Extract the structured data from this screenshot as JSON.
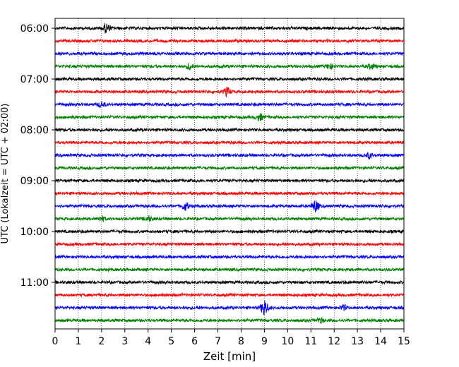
{
  "chart_data": {
    "type": "line",
    "title": "",
    "xlabel": "Zeit  [min]",
    "ylabel": "UTC (Lokalzeit = UTC + 02:00)",
    "xlim": [
      0,
      15
    ],
    "x_ticks": [
      "0",
      "1",
      "2",
      "3",
      "4",
      "5",
      "6",
      "7",
      "8",
      "9",
      "10",
      "11",
      "12",
      "13",
      "14",
      "15"
    ],
    "y_ticks": [
      "06:00",
      "07:00",
      "08:00",
      "09:00",
      "10:00",
      "11:00"
    ],
    "row_interval_minutes": 15,
    "colors": [
      "#000000",
      "#ff0000",
      "#0000ff",
      "#008000"
    ],
    "grid": {
      "x": true,
      "y": false,
      "style": "dotted"
    },
    "series": [
      {
        "start": "06:00",
        "color": "#000000",
        "events": [
          [
            2.2,
            0.6
          ]
        ]
      },
      {
        "start": "06:15",
        "color": "#ff0000",
        "events": []
      },
      {
        "start": "06:30",
        "color": "#0000ff",
        "events": []
      },
      {
        "start": "06:45",
        "color": "#008000",
        "events": [
          [
            5.8,
            0.4
          ],
          [
            11.8,
            0.3
          ],
          [
            13.6,
            0.3
          ]
        ]
      },
      {
        "start": "07:00",
        "color": "#000000",
        "events": []
      },
      {
        "start": "07:15",
        "color": "#ff0000",
        "events": [
          [
            7.4,
            0.5
          ]
        ]
      },
      {
        "start": "07:30",
        "color": "#0000ff",
        "events": [
          [
            2.0,
            0.3
          ]
        ]
      },
      {
        "start": "07:45",
        "color": "#008000",
        "events": [
          [
            8.8,
            0.4
          ]
        ]
      },
      {
        "start": "08:00",
        "color": "#000000",
        "events": []
      },
      {
        "start": "08:15",
        "color": "#ff0000",
        "events": []
      },
      {
        "start": "08:30",
        "color": "#0000ff",
        "events": [
          [
            13.5,
            0.3
          ]
        ]
      },
      {
        "start": "08:45",
        "color": "#008000",
        "events": []
      },
      {
        "start": "09:00",
        "color": "#000000",
        "events": []
      },
      {
        "start": "09:15",
        "color": "#ff0000",
        "events": []
      },
      {
        "start": "09:30",
        "color": "#0000ff",
        "events": [
          [
            5.6,
            0.5
          ],
          [
            11.2,
            0.7
          ]
        ]
      },
      {
        "start": "09:45",
        "color": "#008000",
        "events": [
          [
            2.0,
            0.3
          ],
          [
            4.0,
            0.3
          ]
        ]
      },
      {
        "start": "10:00",
        "color": "#000000",
        "events": []
      },
      {
        "start": "10:15",
        "color": "#ff0000",
        "events": []
      },
      {
        "start": "10:30",
        "color": "#0000ff",
        "events": []
      },
      {
        "start": "10:45",
        "color": "#008000",
        "events": []
      },
      {
        "start": "11:00",
        "color": "#000000",
        "events": []
      },
      {
        "start": "11:15",
        "color": "#ff0000",
        "events": []
      },
      {
        "start": "11:30",
        "color": "#0000ff",
        "events": [
          [
            9.0,
            1.0
          ],
          [
            12.4,
            0.3
          ]
        ]
      },
      {
        "start": "11:45",
        "color": "#008000",
        "events": [
          [
            11.4,
            0.3
          ]
        ]
      }
    ]
  }
}
